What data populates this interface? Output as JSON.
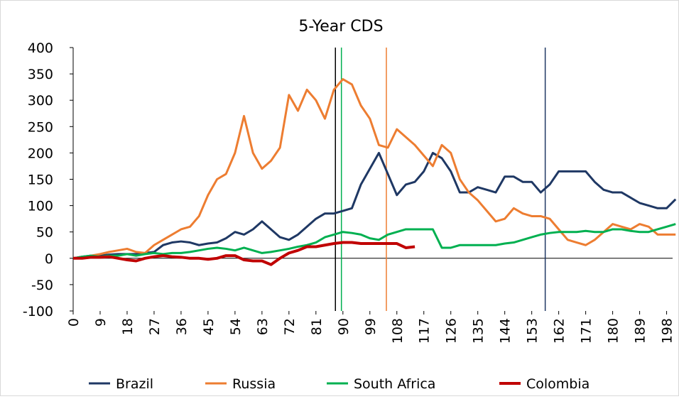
{
  "chart_data": {
    "type": "line",
    "title": "5-Year CDS",
    "x": [
      0,
      3,
      6,
      9,
      12,
      15,
      18,
      21,
      24,
      27,
      30,
      33,
      36,
      39,
      42,
      45,
      48,
      51,
      54,
      57,
      60,
      63,
      66,
      69,
      72,
      75,
      78,
      81,
      84,
      87,
      90,
      93,
      96,
      99,
      102,
      105,
      108,
      111,
      114,
      117,
      120,
      123,
      126,
      129,
      132,
      135,
      138,
      141,
      144,
      147,
      150,
      153,
      156,
      159,
      162,
      165,
      168,
      171,
      174,
      177,
      180,
      183,
      186,
      189,
      192,
      195,
      198,
      201
    ],
    "series": [
      {
        "name": "Brazil",
        "color": "#1f3864",
        "values": [
          0,
          3,
          5,
          5,
          7,
          8,
          8,
          8,
          10,
          12,
          25,
          30,
          32,
          30,
          25,
          28,
          30,
          38,
          50,
          45,
          55,
          70,
          55,
          40,
          35,
          45,
          60,
          75,
          85,
          85,
          90,
          95,
          140,
          170,
          200,
          160,
          120,
          140,
          145,
          165,
          200,
          190,
          165,
          125,
          125,
          135,
          130,
          125,
          155,
          155,
          145,
          145,
          125,
          140,
          165,
          165,
          165,
          165,
          145,
          130,
          125,
          125,
          115,
          105,
          100,
          95,
          95,
          112
        ]
      },
      {
        "name": "Russia",
        "color": "#ed7d31",
        "values": [
          0,
          2,
          5,
          8,
          12,
          15,
          18,
          12,
          10,
          25,
          35,
          45,
          55,
          60,
          80,
          120,
          150,
          160,
          200,
          270,
          200,
          170,
          185,
          210,
          310,
          280,
          320,
          300,
          265,
          320,
          340,
          330,
          290,
          265,
          215,
          210,
          245,
          230,
          215,
          195,
          175,
          215,
          200,
          150,
          125,
          110,
          90,
          70,
          75,
          95,
          85,
          80,
          80,
          75,
          55,
          35,
          30,
          25,
          35,
          50,
          65,
          60,
          55,
          65,
          60,
          45,
          45,
          45
        ]
      },
      {
        "name": "South Africa",
        "color": "#00b050",
        "values": [
          0,
          3,
          5,
          3,
          5,
          5,
          8,
          5,
          8,
          10,
          8,
          10,
          10,
          12,
          15,
          18,
          20,
          18,
          15,
          20,
          15,
          10,
          12,
          15,
          18,
          22,
          25,
          30,
          40,
          45,
          50,
          48,
          45,
          38,
          35,
          45,
          50,
          55,
          55,
          55,
          55,
          20,
          20,
          25,
          25,
          25,
          25,
          25,
          28,
          30,
          35,
          40,
          45,
          48,
          50,
          50,
          50,
          52,
          50,
          50,
          55,
          55,
          52,
          50,
          50,
          55,
          60,
          65
        ]
      },
      {
        "name": "Colombia",
        "color": "#c00000",
        "values": [
          0,
          0,
          2,
          2,
          3,
          0,
          -3,
          -5,
          0,
          3,
          5,
          3,
          2,
          0,
          0,
          -2,
          0,
          5,
          5,
          -3,
          -5,
          -5,
          -12,
          0,
          10,
          15,
          22,
          22,
          25,
          28,
          30,
          30,
          28,
          28,
          28,
          28,
          28,
          20,
          22,
          null,
          null,
          null,
          null,
          null,
          null,
          null,
          null,
          null,
          null,
          null,
          null,
          null,
          null,
          null,
          null,
          null,
          null,
          null,
          null,
          null,
          null,
          null,
          null,
          null,
          null,
          null,
          null,
          null
        ]
      }
    ],
    "vlines": [
      {
        "x": 87.5,
        "color": "#000000"
      },
      {
        "x": 89.5,
        "color": "#00b050"
      },
      {
        "x": 104.5,
        "color": "#ed7d31"
      },
      {
        "x": 157.5,
        "color": "#1f3864"
      }
    ],
    "xlim": [
      0,
      200
    ],
    "xticks": [
      0,
      9,
      18,
      27,
      36,
      45,
      54,
      63,
      72,
      81,
      90,
      99,
      108,
      117,
      126,
      135,
      144,
      153,
      162,
      171,
      180,
      189,
      198
    ],
    "ylim": [
      -100,
      400
    ],
    "yticks": [
      -100,
      -50,
      0,
      50,
      100,
      150,
      200,
      250,
      300,
      350,
      400
    ],
    "legend": "bottom"
  }
}
